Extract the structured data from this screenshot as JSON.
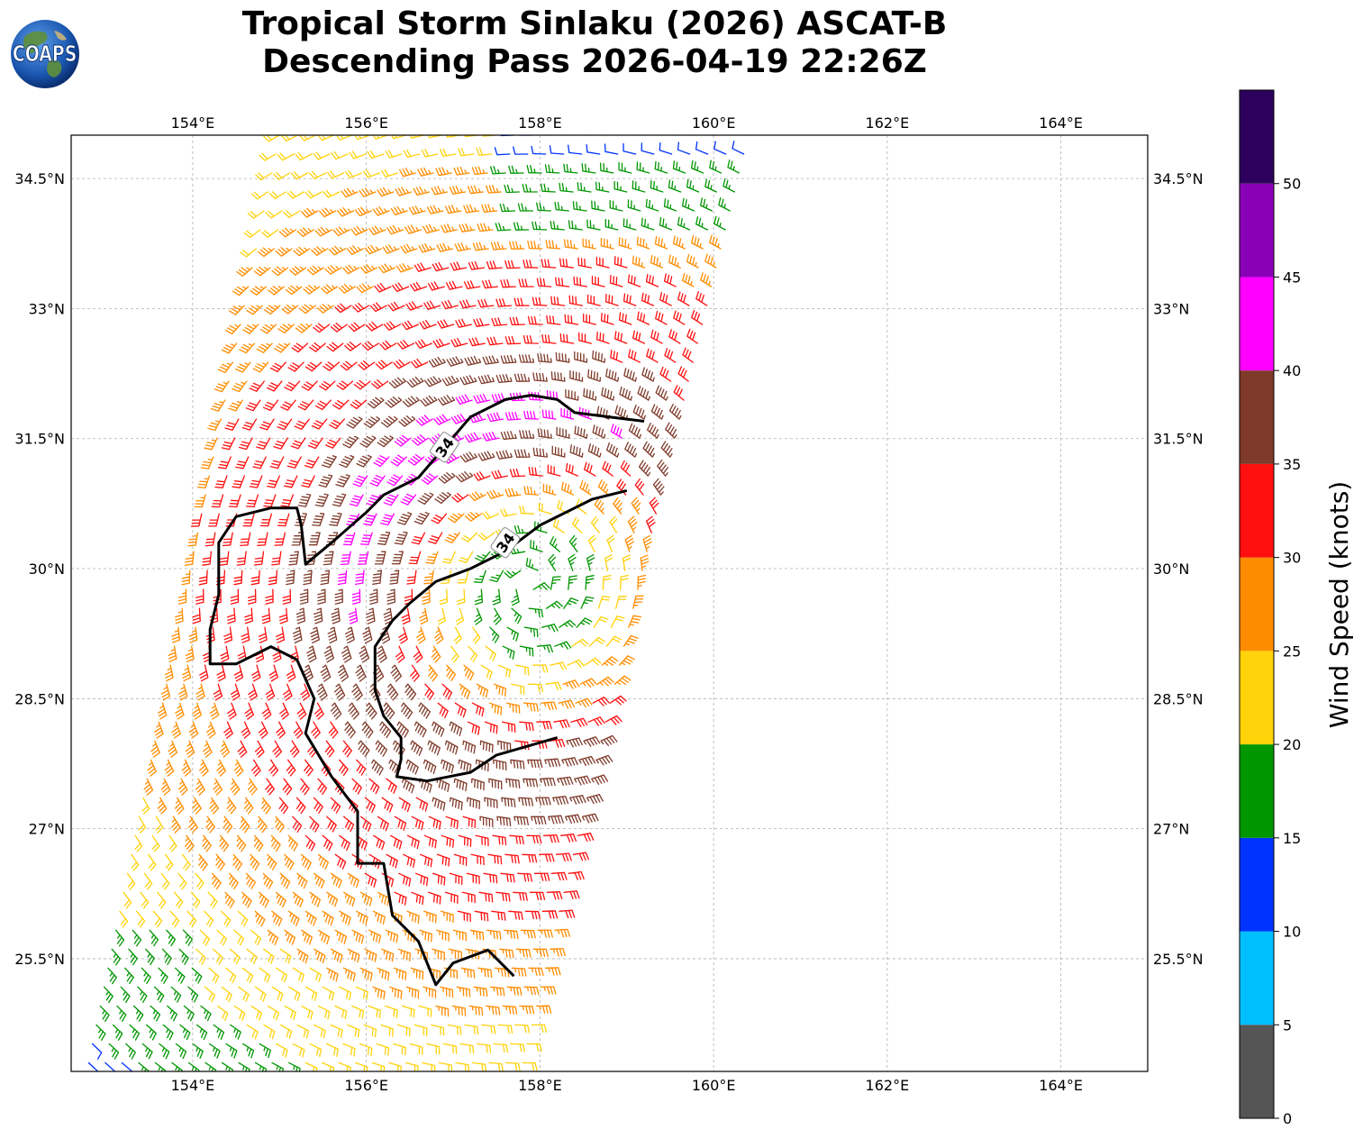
{
  "logo": {
    "text": "COAPS",
    "icon": "globe-icon"
  },
  "title": {
    "line1": "Tropical Storm Sinlaku (2026) ASCAT-B",
    "line2": "Descending Pass 2026-04-19 22:26Z"
  },
  "map": {
    "lon_range": [
      152.6,
      165.0
    ],
    "lat_range": [
      24.2,
      35.0
    ],
    "lon_ticks": [
      {
        "value": 154,
        "label": "154°E"
      },
      {
        "value": 156,
        "label": "156°E"
      },
      {
        "value": 158,
        "label": "158°E"
      },
      {
        "value": 160,
        "label": "160°E"
      },
      {
        "value": 162,
        "label": "162°E"
      },
      {
        "value": 164,
        "label": "164°E"
      }
    ],
    "lat_ticks": [
      {
        "value": 34.5,
        "label": "34.5°N"
      },
      {
        "value": 33,
        "label": "33°N"
      },
      {
        "value": 31.5,
        "label": "31.5°N"
      },
      {
        "value": 30,
        "label": "30°N"
      },
      {
        "value": 28.5,
        "label": "28.5°N"
      },
      {
        "value": 27,
        "label": "27°N"
      },
      {
        "value": 25.5,
        "label": "25.5°N"
      }
    ],
    "grid": true,
    "storm_center": {
      "lon": 157.9,
      "lat": 29.8
    },
    "swath": {
      "bottom_left": {
        "lon": 152.8,
        "lat": 24.3
      },
      "bottom_right": {
        "lon": 157.8,
        "lat": 24.3
      },
      "top_left": {
        "lon": 155.0,
        "lat": 35.0
      },
      "top_right": {
        "lon": 160.4,
        "lat": 35.0
      }
    },
    "contour_label": "34",
    "contour_labels_at": [
      {
        "lon": 156.9,
        "lat": 31.4,
        "angle": -55
      },
      {
        "lon": 157.6,
        "lat": 30.3,
        "angle": -55
      }
    ],
    "contour_34kt": [
      [
        [
          159.2,
          31.7
        ],
        [
          158.8,
          31.75
        ],
        [
          158.4,
          31.8
        ],
        [
          158.2,
          31.95
        ],
        [
          157.9,
          32.0
        ],
        [
          157.6,
          31.95
        ],
        [
          157.2,
          31.75
        ],
        [
          156.9,
          31.4
        ],
        [
          156.6,
          31.05
        ],
        [
          156.2,
          30.85
        ],
        [
          156.0,
          30.65
        ],
        [
          155.6,
          30.3
        ],
        [
          155.3,
          30.05
        ],
        [
          155.25,
          30.5
        ],
        [
          155.2,
          30.7
        ],
        [
          154.9,
          30.7
        ],
        [
          154.5,
          30.6
        ],
        [
          154.3,
          30.3
        ],
        [
          154.3,
          29.7
        ],
        [
          154.2,
          29.3
        ],
        [
          154.2,
          28.9
        ],
        [
          154.5,
          28.9
        ],
        [
          154.9,
          29.1
        ],
        [
          155.2,
          28.95
        ],
        [
          155.4,
          28.5
        ],
        [
          155.3,
          28.1
        ],
        [
          155.6,
          27.6
        ],
        [
          155.9,
          27.2
        ],
        [
          155.9,
          26.6
        ],
        [
          156.2,
          26.6
        ],
        [
          156.3,
          26.0
        ],
        [
          156.6,
          25.7
        ],
        [
          156.8,
          25.2
        ],
        [
          157.0,
          25.45
        ],
        [
          157.4,
          25.6
        ],
        [
          157.7,
          25.3
        ]
      ],
      [
        [
          159.0,
          30.9
        ],
        [
          158.6,
          30.8
        ],
        [
          158.0,
          30.5
        ],
        [
          157.6,
          30.2
        ],
        [
          157.2,
          30.0
        ],
        [
          156.8,
          29.85
        ],
        [
          156.5,
          29.6
        ],
        [
          156.3,
          29.4
        ],
        [
          156.1,
          29.1
        ],
        [
          156.1,
          28.6
        ],
        [
          156.2,
          28.3
        ],
        [
          156.4,
          28.05
        ],
        [
          156.4,
          27.8
        ],
        [
          156.35,
          27.6
        ],
        [
          156.7,
          27.55
        ],
        [
          157.2,
          27.65
        ],
        [
          157.5,
          27.85
        ],
        [
          158.2,
          28.05
        ]
      ]
    ]
  },
  "colorbar": {
    "label": "Wind Speed (knots)",
    "ticks": [
      {
        "value": 0,
        "label": "0"
      },
      {
        "value": 5,
        "label": "5"
      },
      {
        "value": 10,
        "label": "10"
      },
      {
        "value": 15,
        "label": "15"
      },
      {
        "value": 20,
        "label": "20"
      },
      {
        "value": 25,
        "label": "25"
      },
      {
        "value": 30,
        "label": "30"
      },
      {
        "value": 35,
        "label": "35"
      },
      {
        "value": 40,
        "label": "40"
      },
      {
        "value": 45,
        "label": "45"
      },
      {
        "value": 50,
        "label": "50"
      }
    ],
    "bins": [
      {
        "min": 0,
        "max": 5,
        "color": "#555555"
      },
      {
        "min": 5,
        "max": 10,
        "color": "#00bfff"
      },
      {
        "min": 10,
        "max": 15,
        "color": "#0033ff"
      },
      {
        "min": 15,
        "max": 20,
        "color": "#009600"
      },
      {
        "min": 20,
        "max": 25,
        "color": "#ffd20a"
      },
      {
        "min": 25,
        "max": 30,
        "color": "#ff8c00"
      },
      {
        "min": 30,
        "max": 35,
        "color": "#ff0f0f"
      },
      {
        "min": 35,
        "max": 40,
        "color": "#7f3a2a"
      },
      {
        "min": 40,
        "max": 45,
        "color": "#ff00ff"
      },
      {
        "min": 45,
        "max": 50,
        "color": "#8a00b8"
      },
      {
        "min": 50,
        "max": 55,
        "color": "#2e005e"
      }
    ]
  }
}
